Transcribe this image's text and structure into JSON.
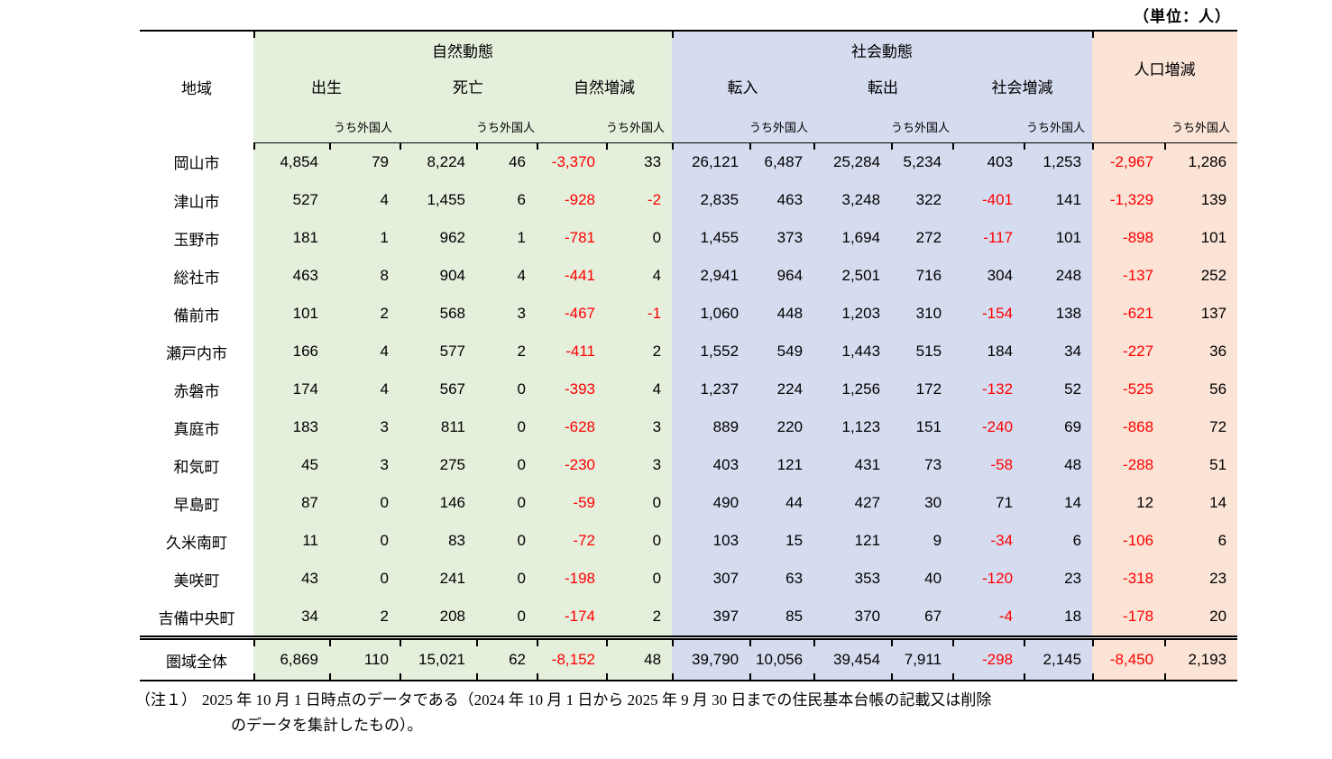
{
  "unit_label": "（単位：人）",
  "colors": {
    "natural_block_bg": "#e4efdc",
    "social_block_bg": "#d6dcf0",
    "population_block_bg": "#fbe3d6",
    "negative_value_text": "#ff0000"
  },
  "table": {
    "region_header": "地域",
    "foreign_sublabel": "うち外国人",
    "groups": [
      {
        "label": "自然動態",
        "columns": [
          "出生",
          "死亡",
          "自然増減"
        ]
      },
      {
        "label": "社会動態",
        "columns": [
          "転入",
          "転出",
          "社会増減"
        ]
      },
      {
        "label": "人口増減",
        "columns": []
      }
    ],
    "rows": [
      {
        "region": "岡山市",
        "values": [
          "4,854",
          "79",
          "8,224",
          "46",
          "-3,370",
          "33",
          "26,121",
          "6,487",
          "25,284",
          "5,234",
          "403",
          "1,253",
          "-2,967",
          "1,286"
        ]
      },
      {
        "region": "津山市",
        "values": [
          "527",
          "4",
          "1,455",
          "6",
          "-928",
          "-2",
          "2,835",
          "463",
          "3,248",
          "322",
          "-401",
          "141",
          "-1,329",
          "139"
        ]
      },
      {
        "region": "玉野市",
        "values": [
          "181",
          "1",
          "962",
          "1",
          "-781",
          "0",
          "1,455",
          "373",
          "1,694",
          "272",
          "-117",
          "101",
          "-898",
          "101"
        ]
      },
      {
        "region": "総社市",
        "values": [
          "463",
          "8",
          "904",
          "4",
          "-441",
          "4",
          "2,941",
          "964",
          "2,501",
          "716",
          "304",
          "248",
          "-137",
          "252"
        ]
      },
      {
        "region": "備前市",
        "values": [
          "101",
          "2",
          "568",
          "3",
          "-467",
          "-1",
          "1,060",
          "448",
          "1,203",
          "310",
          "-154",
          "138",
          "-621",
          "137"
        ]
      },
      {
        "region": "瀬戸内市",
        "values": [
          "166",
          "4",
          "577",
          "2",
          "-411",
          "2",
          "1,552",
          "549",
          "1,443",
          "515",
          "184",
          "34",
          "-227",
          "36"
        ]
      },
      {
        "region": "赤磐市",
        "values": [
          "174",
          "4",
          "567",
          "0",
          "-393",
          "4",
          "1,237",
          "224",
          "1,256",
          "172",
          "-132",
          "52",
          "-525",
          "56"
        ]
      },
      {
        "region": "真庭市",
        "values": [
          "183",
          "3",
          "811",
          "0",
          "-628",
          "3",
          "889",
          "220",
          "1,123",
          "151",
          "-240",
          "69",
          "-868",
          "72"
        ]
      },
      {
        "region": "和気町",
        "values": [
          "45",
          "3",
          "275",
          "0",
          "-230",
          "3",
          "403",
          "121",
          "431",
          "73",
          "-58",
          "48",
          "-288",
          "51"
        ]
      },
      {
        "region": "早島町",
        "values": [
          "87",
          "0",
          "146",
          "0",
          "-59",
          "0",
          "490",
          "44",
          "427",
          "30",
          "71",
          "14",
          "12",
          "14"
        ]
      },
      {
        "region": "久米南町",
        "values": [
          "11",
          "0",
          "83",
          "0",
          "-72",
          "0",
          "103",
          "15",
          "121",
          "9",
          "-34",
          "6",
          "-106",
          "6"
        ]
      },
      {
        "region": "美咲町",
        "values": [
          "43",
          "0",
          "241",
          "0",
          "-198",
          "0",
          "307",
          "63",
          "353",
          "40",
          "-120",
          "23",
          "-318",
          "23"
        ]
      },
      {
        "region": "吉備中央町",
        "values": [
          "34",
          "2",
          "208",
          "0",
          "-174",
          "2",
          "397",
          "85",
          "370",
          "67",
          "-4",
          "18",
          "-178",
          "20"
        ]
      }
    ],
    "total_row": {
      "region": "圏域全体",
      "values": [
        "6,869",
        "110",
        "15,021",
        "62",
        "-8,152",
        "48",
        "39,790",
        "10,056",
        "39,454",
        "7,911",
        "-298",
        "2,145",
        "-8,450",
        "2,193"
      ]
    }
  },
  "note": {
    "label": "（注１）",
    "line1": "2025 年 10 月 1 日時点のデータである（2024 年 10 月 1 日から 2025 年 9 月 30 日までの住民基本台帳の記載又は削除",
    "line2": "のデータを集計したもの）。"
  }
}
